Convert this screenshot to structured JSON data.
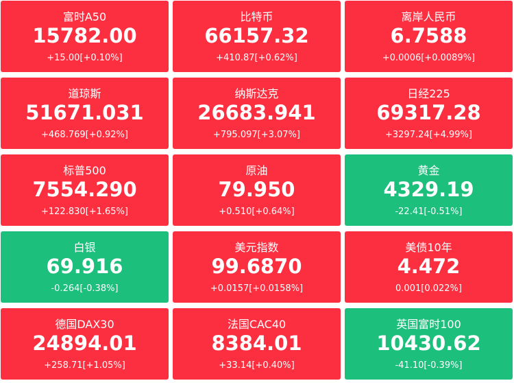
{
  "tiles": [
    {
      "name": "富时A50",
      "price": "15782.00",
      "change": "+15.00[+0.10%]",
      "color": "#fc2f40"
    },
    {
      "name": "比特币",
      "price": "66157.32",
      "change": "+410.87[+0.62%]",
      "color": "#fc2f40"
    },
    {
      "name": "离岸人民币",
      "price": "6.7588",
      "change": "+0.0006[+0.0089%]",
      "color": "#fc2f40"
    },
    {
      "name": "道琼斯",
      "price": "51671.031",
      "change": "+468.769[+0.92%]",
      "color": "#fc2f40"
    },
    {
      "name": "纳斯达克",
      "price": "26683.941",
      "change": "+795.097[+3.07%]",
      "color": "#fc2f40"
    },
    {
      "name": "日经225",
      "price": "69317.28",
      "change": "+3297.24[+4.99%]",
      "color": "#fc2f40"
    },
    {
      "name": "标普500",
      "price": "7554.290",
      "change": "+122.830[+1.65%]",
      "color": "#fc2f40"
    },
    {
      "name": "原油",
      "price": "79.950",
      "change": "+0.510[+0.64%]",
      "color": "#fc2f40"
    },
    {
      "name": "黄金",
      "price": "4329.19",
      "change": "-22.41[-0.51%]",
      "color": "#1cbf7b"
    },
    {
      "name": "白银",
      "price": "69.916",
      "change": "-0.264[-0.38%]",
      "color": "#1cbf7b"
    },
    {
      "name": "美元指数",
      "price": "99.6870",
      "change": "+0.0157[+0.0158%]",
      "color": "#fc2f40"
    },
    {
      "name": "美债10年",
      "price": "4.472",
      "change": "0.001[0.022%]",
      "color": "#fc2f40"
    },
    {
      "name": "德国DAX30",
      "price": "24894.01",
      "change": "+258.71[+1.05%]",
      "color": "#fc2f40"
    },
    {
      "name": "法国CAC40",
      "price": "8384.01",
      "change": "+33.14[+0.40%]",
      "color": "#fc2f40"
    },
    {
      "name": "英国富时100",
      "price": "10430.62",
      "change": "-41.10[-0.39%]",
      "color": "#1cbf7b"
    }
  ]
}
